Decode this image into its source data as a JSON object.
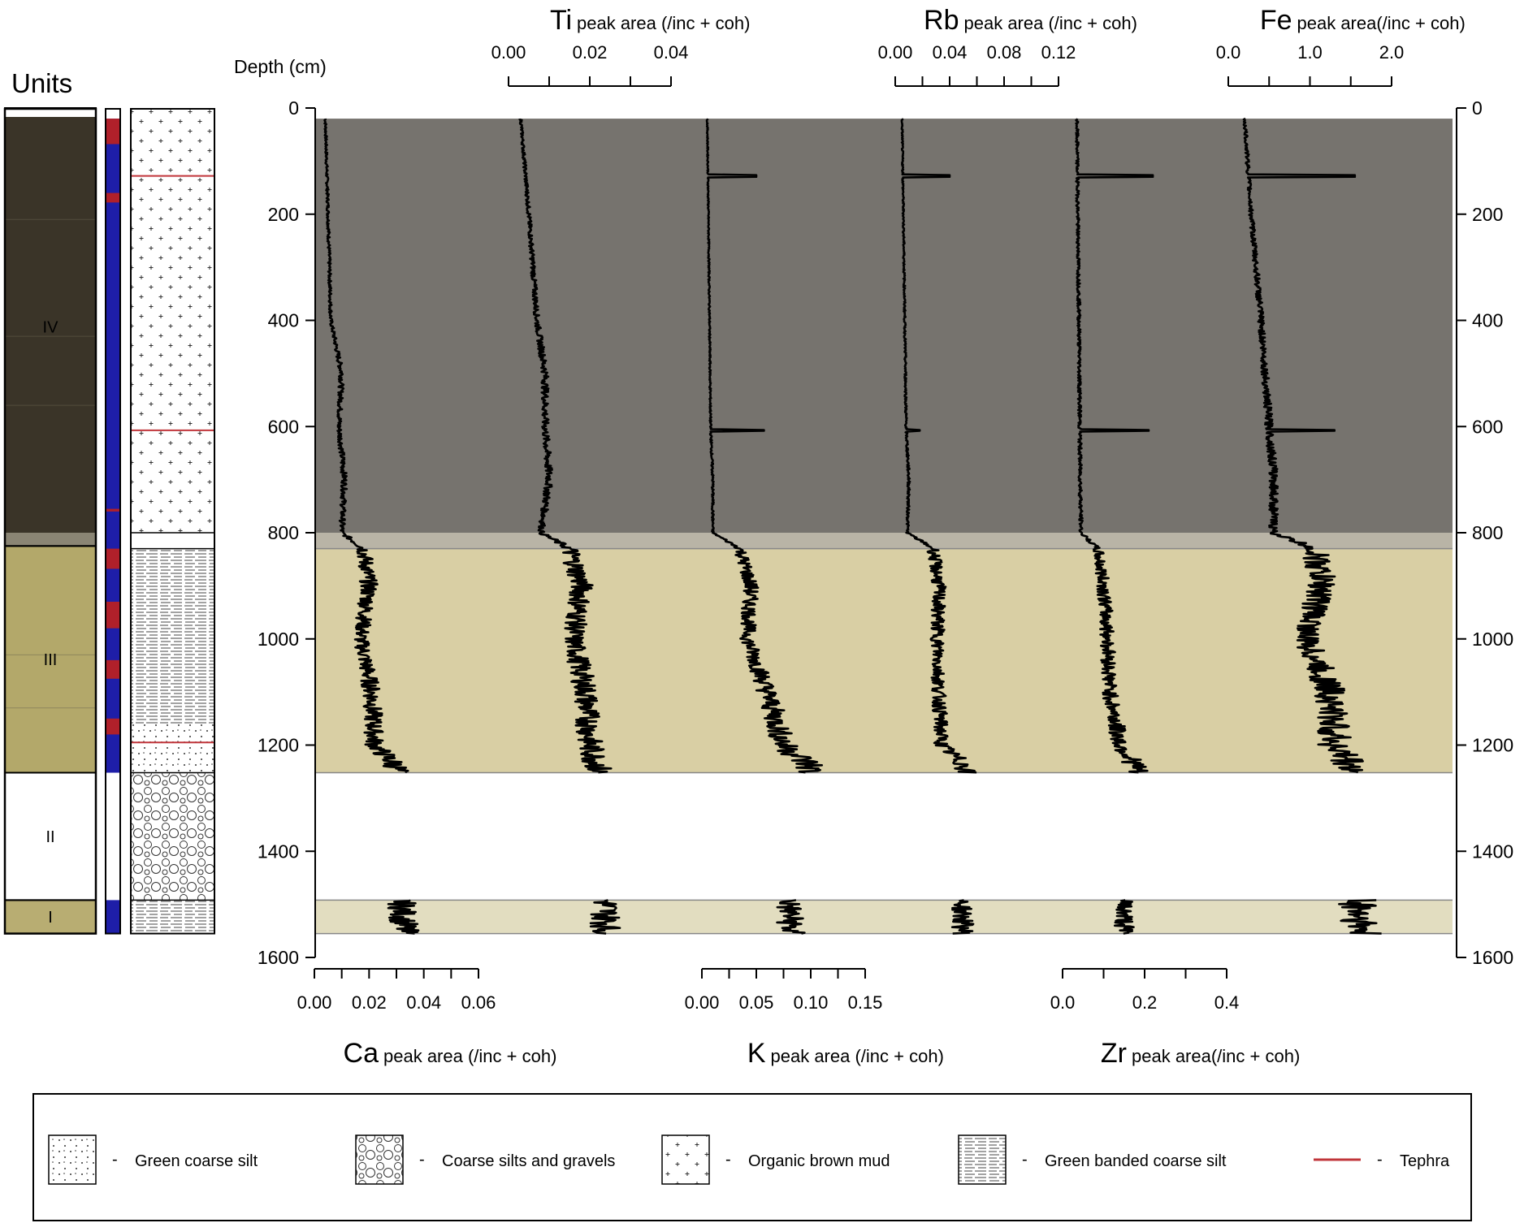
{
  "core_panel": {
    "title": "Units",
    "units": [
      {
        "label": "IV",
        "top": 0,
        "bottom": 825
      },
      {
        "label": "III",
        "top": 825,
        "bottom": 1252
      },
      {
        "label": "II",
        "top": 1252,
        "bottom": 1492
      },
      {
        "label": "I",
        "top": 1492,
        "bottom": 1555
      }
    ],
    "colors": {
      "unit_iv": "#3a3428",
      "unit_iii": "#b3a86a",
      "unit_i": "#b8ad72",
      "red_band": "#b0202a",
      "blue_band": "#1e1ea8",
      "tephra": "#c0353a"
    }
  },
  "legend": {
    "separator": "-",
    "items": [
      {
        "label": "Green coarse silt",
        "pattern": "dots"
      },
      {
        "label": "Coarse silts and gravels",
        "pattern": "circles"
      },
      {
        "label": "Organic brown mud",
        "pattern": "crosses"
      },
      {
        "label": "Green banded coarse silt",
        "pattern": "banded"
      },
      {
        "label": "Tephra",
        "pattern": "red-line"
      }
    ]
  },
  "chart_data": {
    "type": "line",
    "depth_axis": {
      "label": "Depth (cm)",
      "range": [
        0,
        1600
      ],
      "ticks": [
        "0",
        "200",
        "400",
        "600",
        "800",
        "1000",
        "1200",
        "1400",
        "1600"
      ],
      "inverted": true
    },
    "zones": [
      {
        "from": 20,
        "to": 800,
        "color": "#76736e"
      },
      {
        "from": 800,
        "to": 830,
        "color": "#b9b4a6"
      },
      {
        "from": 830,
        "to": 1252,
        "color": "#d9cfa4"
      },
      {
        "from": 1492,
        "to": 1555,
        "color": "#e2ddc0"
      }
    ],
    "tephra_depths": [
      128,
      607,
      1195
    ],
    "top_axes": [
      {
        "element": "Ti",
        "label": "peak area (/inc + coh)",
        "ticks": [
          "0.00",
          "0.02",
          "0.04"
        ]
      },
      {
        "element": "Rb",
        "label": "peak area (/inc + coh)",
        "ticks": [
          "0.00",
          "0.04",
          "0.08",
          "0.12"
        ]
      },
      {
        "element": "Fe",
        "label": "peak area(/inc + coh)",
        "ticks": [
          "0.0",
          "1.0",
          "2.0"
        ]
      }
    ],
    "bottom_axes": [
      {
        "element": "Ca",
        "label": "peak area (/inc + coh)",
        "ticks": [
          "0.00",
          "0.02",
          "0.04",
          "0.06"
        ]
      },
      {
        "element": "K",
        "label": "peak area (/inc + coh)",
        "ticks": [
          "0.00",
          "0.05",
          "0.10",
          "0.15"
        ]
      },
      {
        "element": "Zr",
        "label": "peak area(/inc + coh)",
        "ticks": [
          "0.0",
          "0.2",
          "0.4"
        ]
      }
    ],
    "series": [
      {
        "name": "Ca",
        "xlim": [
          0,
          0.06
        ],
        "spikes": [],
        "points": [
          [
            20,
            0.004
          ],
          [
            200,
            0.005
          ],
          [
            400,
            0.006
          ],
          [
            500,
            0.01
          ],
          [
            600,
            0.009
          ],
          [
            700,
            0.011
          ],
          [
            800,
            0.01
          ],
          [
            830,
            0.018
          ],
          [
            900,
            0.02
          ],
          [
            1000,
            0.017
          ],
          [
            1100,
            0.021
          ],
          [
            1200,
            0.022
          ],
          [
            1240,
            0.03
          ],
          [
            1500,
            0.032
          ],
          [
            1555,
            0.033
          ]
        ]
      },
      {
        "name": "Ti",
        "xlim": [
          0,
          0.04
        ],
        "spikes": [],
        "points": [
          [
            20,
            0.003
          ],
          [
            200,
            0.005
          ],
          [
            400,
            0.007
          ],
          [
            500,
            0.009
          ],
          [
            600,
            0.009
          ],
          [
            700,
            0.01
          ],
          [
            800,
            0.008
          ],
          [
            830,
            0.015
          ],
          [
            900,
            0.018
          ],
          [
            1000,
            0.016
          ],
          [
            1100,
            0.019
          ],
          [
            1200,
            0.02
          ],
          [
            1240,
            0.022
          ],
          [
            1500,
            0.024
          ],
          [
            1555,
            0.024
          ]
        ]
      },
      {
        "name": "K",
        "xlim": [
          0,
          0.15
        ],
        "spikes": [
          [
            128,
            0.05
          ],
          [
            607,
            0.057
          ]
        ],
        "points": [
          [
            20,
            0.005
          ],
          [
            200,
            0.006
          ],
          [
            400,
            0.007
          ],
          [
            600,
            0.008
          ],
          [
            700,
            0.01
          ],
          [
            800,
            0.01
          ],
          [
            830,
            0.035
          ],
          [
            900,
            0.045
          ],
          [
            1000,
            0.042
          ],
          [
            1100,
            0.06
          ],
          [
            1200,
            0.075
          ],
          [
            1240,
            0.1
          ],
          [
            1500,
            0.08
          ],
          [
            1555,
            0.082
          ]
        ]
      },
      {
        "name": "Rb",
        "xlim": [
          0,
          0.12
        ],
        "spikes": [
          [
            128,
            0.04
          ],
          [
            607,
            0.018
          ]
        ],
        "points": [
          [
            20,
            0.005
          ],
          [
            200,
            0.006
          ],
          [
            400,
            0.007
          ],
          [
            600,
            0.008
          ],
          [
            700,
            0.01
          ],
          [
            800,
            0.009
          ],
          [
            830,
            0.028
          ],
          [
            900,
            0.032
          ],
          [
            1000,
            0.031
          ],
          [
            1100,
            0.032
          ],
          [
            1200,
            0.034
          ],
          [
            1240,
            0.052
          ],
          [
            1500,
            0.049
          ],
          [
            1555,
            0.05
          ]
        ]
      },
      {
        "name": "Zr",
        "xlim": [
          0,
          0.4
        ],
        "spikes": [
          [
            128,
            0.22
          ],
          [
            607,
            0.21
          ]
        ],
        "points": [
          [
            20,
            0.035
          ],
          [
            200,
            0.037
          ],
          [
            400,
            0.04
          ],
          [
            600,
            0.042
          ],
          [
            700,
            0.043
          ],
          [
            800,
            0.045
          ],
          [
            830,
            0.085
          ],
          [
            900,
            0.1
          ],
          [
            1000,
            0.11
          ],
          [
            1100,
            0.115
          ],
          [
            1200,
            0.14
          ],
          [
            1240,
            0.18
          ],
          [
            1500,
            0.15
          ],
          [
            1555,
            0.15
          ]
        ]
      },
      {
        "name": "Fe",
        "xlim": [
          0,
          2.0
        ],
        "spikes": [
          [
            128,
            1.55
          ],
          [
            607,
            1.3
          ]
        ],
        "points": [
          [
            20,
            0.2
          ],
          [
            200,
            0.28
          ],
          [
            400,
            0.4
          ],
          [
            600,
            0.5
          ],
          [
            700,
            0.56
          ],
          [
            800,
            0.55
          ],
          [
            830,
            1.05
          ],
          [
            900,
            1.15
          ],
          [
            1000,
            0.95
          ],
          [
            1100,
            1.25
          ],
          [
            1200,
            1.3
          ],
          [
            1240,
            1.5
          ],
          [
            1500,
            1.6
          ],
          [
            1555,
            1.62
          ]
        ]
      }
    ]
  }
}
